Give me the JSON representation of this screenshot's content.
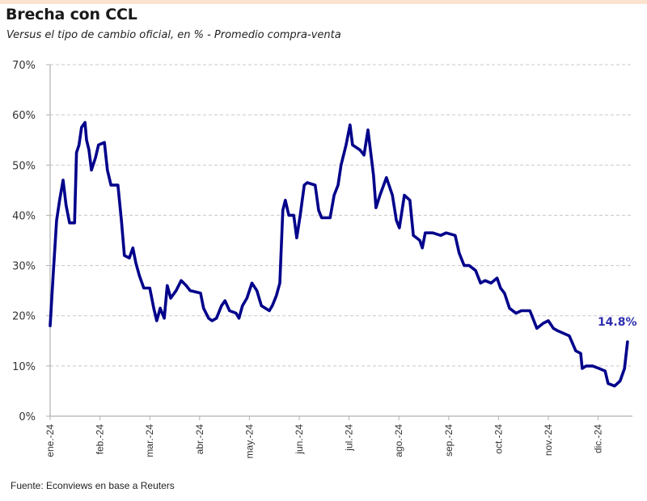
{
  "header": {
    "title": "Brecha con CCL",
    "subtitle": "Versus el tipo de cambio oficial, en % - Promedio compra-venta"
  },
  "footer": {
    "source": "Fuente: Econviews en base a Reuters"
  },
  "colors": {
    "line": "#00008b",
    "annotation": "#2e2eb0",
    "grid": "#c8c8c8",
    "axis": "#b0b0b0",
    "top_band": "#fbe3d0"
  },
  "chart_data": {
    "type": "line",
    "title": "Brecha con CCL",
    "subtitle": "Versus el tipo de cambio oficial, en % - Promedio compra-venta",
    "xlabel": "",
    "ylabel": "",
    "ylim": [
      0,
      70
    ],
    "yticks": [
      0,
      10,
      20,
      30,
      40,
      50,
      60,
      70
    ],
    "ytick_labels": [
      "0%",
      "10%",
      "20%",
      "30%",
      "40%",
      "50%",
      "60%",
      "70%"
    ],
    "xlim_months": [
      0,
      11.65
    ],
    "xtick_labels": [
      "ene.-24",
      "feb.-24",
      "mar.-24",
      "abr.-24",
      "may.-24",
      "jun.-24",
      "jul.-24",
      "ago.-24",
      "sep.-24",
      "oct.-24",
      "nov.-24",
      "dic.-24"
    ],
    "grid": "horizontal dashed",
    "legend": "none",
    "annotations": [
      {
        "text": "14.8%",
        "at_month": 11.59,
        "value": 14.8
      }
    ],
    "series": [
      {
        "name": "Brecha con CCL (%)",
        "x_months": [
          0.0,
          0.06,
          0.13,
          0.19,
          0.26,
          0.32,
          0.39,
          0.49,
          0.53,
          0.58,
          0.63,
          0.7,
          0.73,
          0.78,
          0.83,
          0.91,
          0.97,
          1.09,
          1.15,
          1.22,
          1.36,
          1.43,
          1.49,
          1.59,
          1.66,
          1.72,
          1.79,
          1.88,
          2.0,
          2.08,
          2.14,
          2.21,
          2.29,
          2.35,
          2.42,
          2.53,
          2.63,
          2.73,
          2.81,
          3.02,
          3.08,
          3.18,
          3.25,
          3.34,
          3.44,
          3.51,
          3.6,
          3.73,
          3.79,
          3.86,
          3.95,
          4.05,
          4.15,
          4.24,
          4.4,
          4.46,
          4.54,
          4.61,
          4.67,
          4.72,
          4.79,
          4.89,
          4.95,
          5.02,
          5.1,
          5.16,
          5.32,
          5.39,
          5.45,
          5.62,
          5.7,
          5.78,
          5.84,
          5.94,
          6.02,
          6.07,
          6.22,
          6.3,
          6.38,
          6.49,
          6.54,
          6.62,
          6.75,
          6.87,
          6.95,
          7.01,
          7.11,
          7.22,
          7.29,
          7.42,
          7.47,
          7.53,
          7.68,
          7.84,
          7.95,
          8.13,
          8.21,
          8.31,
          8.41,
          8.54,
          8.64,
          8.73,
          8.85,
          8.97,
          9.04,
          9.12,
          9.22,
          9.35,
          9.46,
          9.63,
          9.69,
          9.77,
          9.9,
          10.0,
          10.1,
          10.19,
          10.42,
          10.55,
          10.65,
          10.68,
          10.76,
          10.89,
          11.02,
          11.14,
          11.2,
          11.33,
          11.44,
          11.53,
          11.59
        ],
        "values": [
          18.0,
          28,
          39,
          43,
          47,
          42,
          38.5,
          38.5,
          52.5,
          54,
          57.5,
          58.5,
          55,
          53,
          49,
          51.5,
          54,
          54.5,
          49,
          46,
          46,
          39,
          32,
          31.5,
          33.5,
          30.5,
          28,
          25.5,
          25.5,
          21.5,
          19,
          21.5,
          19.5,
          26,
          23.5,
          25,
          27,
          26,
          25,
          24.5,
          21.5,
          19.5,
          19,
          19.5,
          22,
          23,
          21,
          20.5,
          19.5,
          22,
          23.5,
          26.5,
          25,
          22,
          21,
          22,
          24,
          26.5,
          41,
          43,
          40,
          40,
          35.5,
          40,
          46,
          46.5,
          46,
          41,
          39.5,
          39.5,
          44,
          46,
          50,
          54,
          58,
          54,
          53,
          52,
          57,
          48,
          41.5,
          44,
          47.5,
          44,
          39,
          37.5,
          44,
          43,
          36,
          35,
          33.5,
          36.5,
          36.5,
          36,
          36.5,
          36,
          32.5,
          30,
          30,
          29,
          26.5,
          27,
          26.5,
          27.5,
          25.5,
          24.5,
          21.5,
          20.5,
          21,
          21,
          19.5,
          17.5,
          18.5,
          19,
          17.5,
          17,
          16,
          13,
          12.5,
          9.5,
          10,
          10,
          9.5,
          9,
          6.5,
          6,
          7,
          9.5,
          14.8
        ]
      }
    ]
  }
}
